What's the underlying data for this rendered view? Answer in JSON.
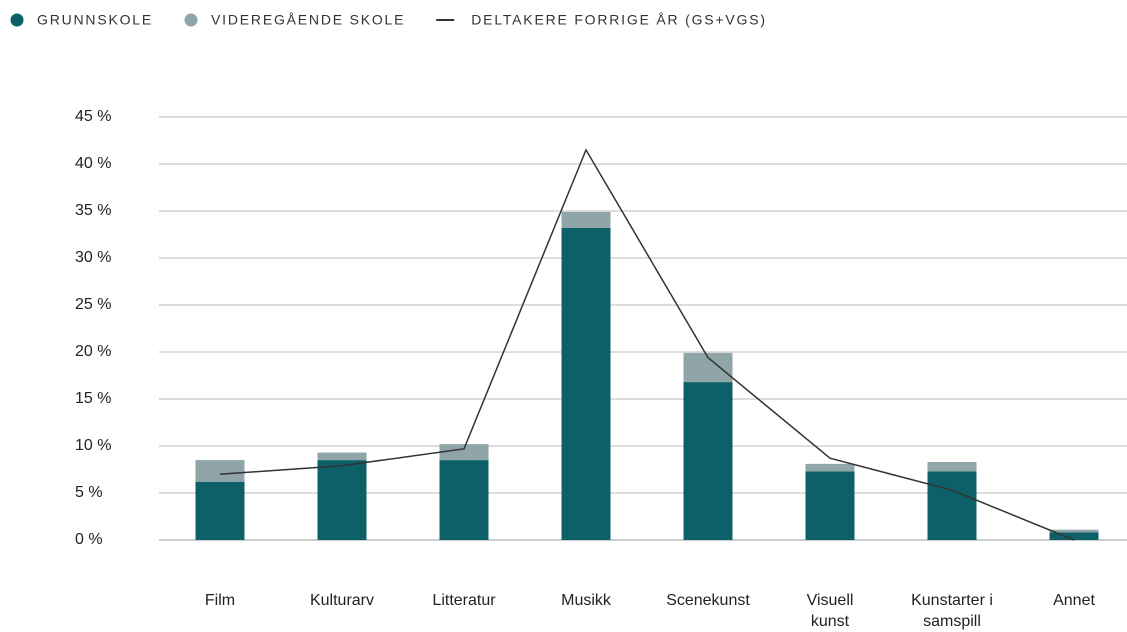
{
  "chart_data": {
    "type": "bar",
    "stacked": true,
    "categories": [
      "Film",
      "Kulturarv",
      "Litteratur",
      "Musikk",
      "Scenekunst",
      "Visuell kunst",
      "Kunstarter i samspill",
      "Annet"
    ],
    "series": [
      {
        "name": "GRUNNSKOLE",
        "color": "#0d5f68",
        "type": "bar",
        "values": [
          6.2,
          8.5,
          8.5,
          33.2,
          16.8,
          7.3,
          7.3,
          0.8
        ]
      },
      {
        "name": "VIDEREGÅENDE SKOLE",
        "color": "#8fa5a8",
        "type": "bar",
        "values": [
          2.3,
          0.8,
          1.7,
          1.7,
          3.1,
          0.8,
          1.0,
          0.3
        ]
      },
      {
        "name": "DELTAKERE FORRIGE ÅR (GS+VGS)",
        "color": "#333333",
        "type": "line",
        "values": [
          7.0,
          7.9,
          9.7,
          41.5,
          19.4,
          8.7,
          5.3,
          0
        ]
      }
    ],
    "ylim": [
      0,
      45
    ],
    "yticks": [
      {
        "value": 0,
        "label": "0 %"
      },
      {
        "value": 5,
        "label": "5 %"
      },
      {
        "value": 10,
        "label": "10 %"
      },
      {
        "value": 15,
        "label": "15 %"
      },
      {
        "value": 20,
        "label": "20 %"
      },
      {
        "value": 25,
        "label": "25 %"
      },
      {
        "value": 30,
        "label": "30 %"
      },
      {
        "value": 35,
        "label": "35 %"
      },
      {
        "value": 40,
        "label": "40 %"
      },
      {
        "value": 45,
        "label": "45 %"
      }
    ],
    "grid": true,
    "legend": "top-left"
  }
}
